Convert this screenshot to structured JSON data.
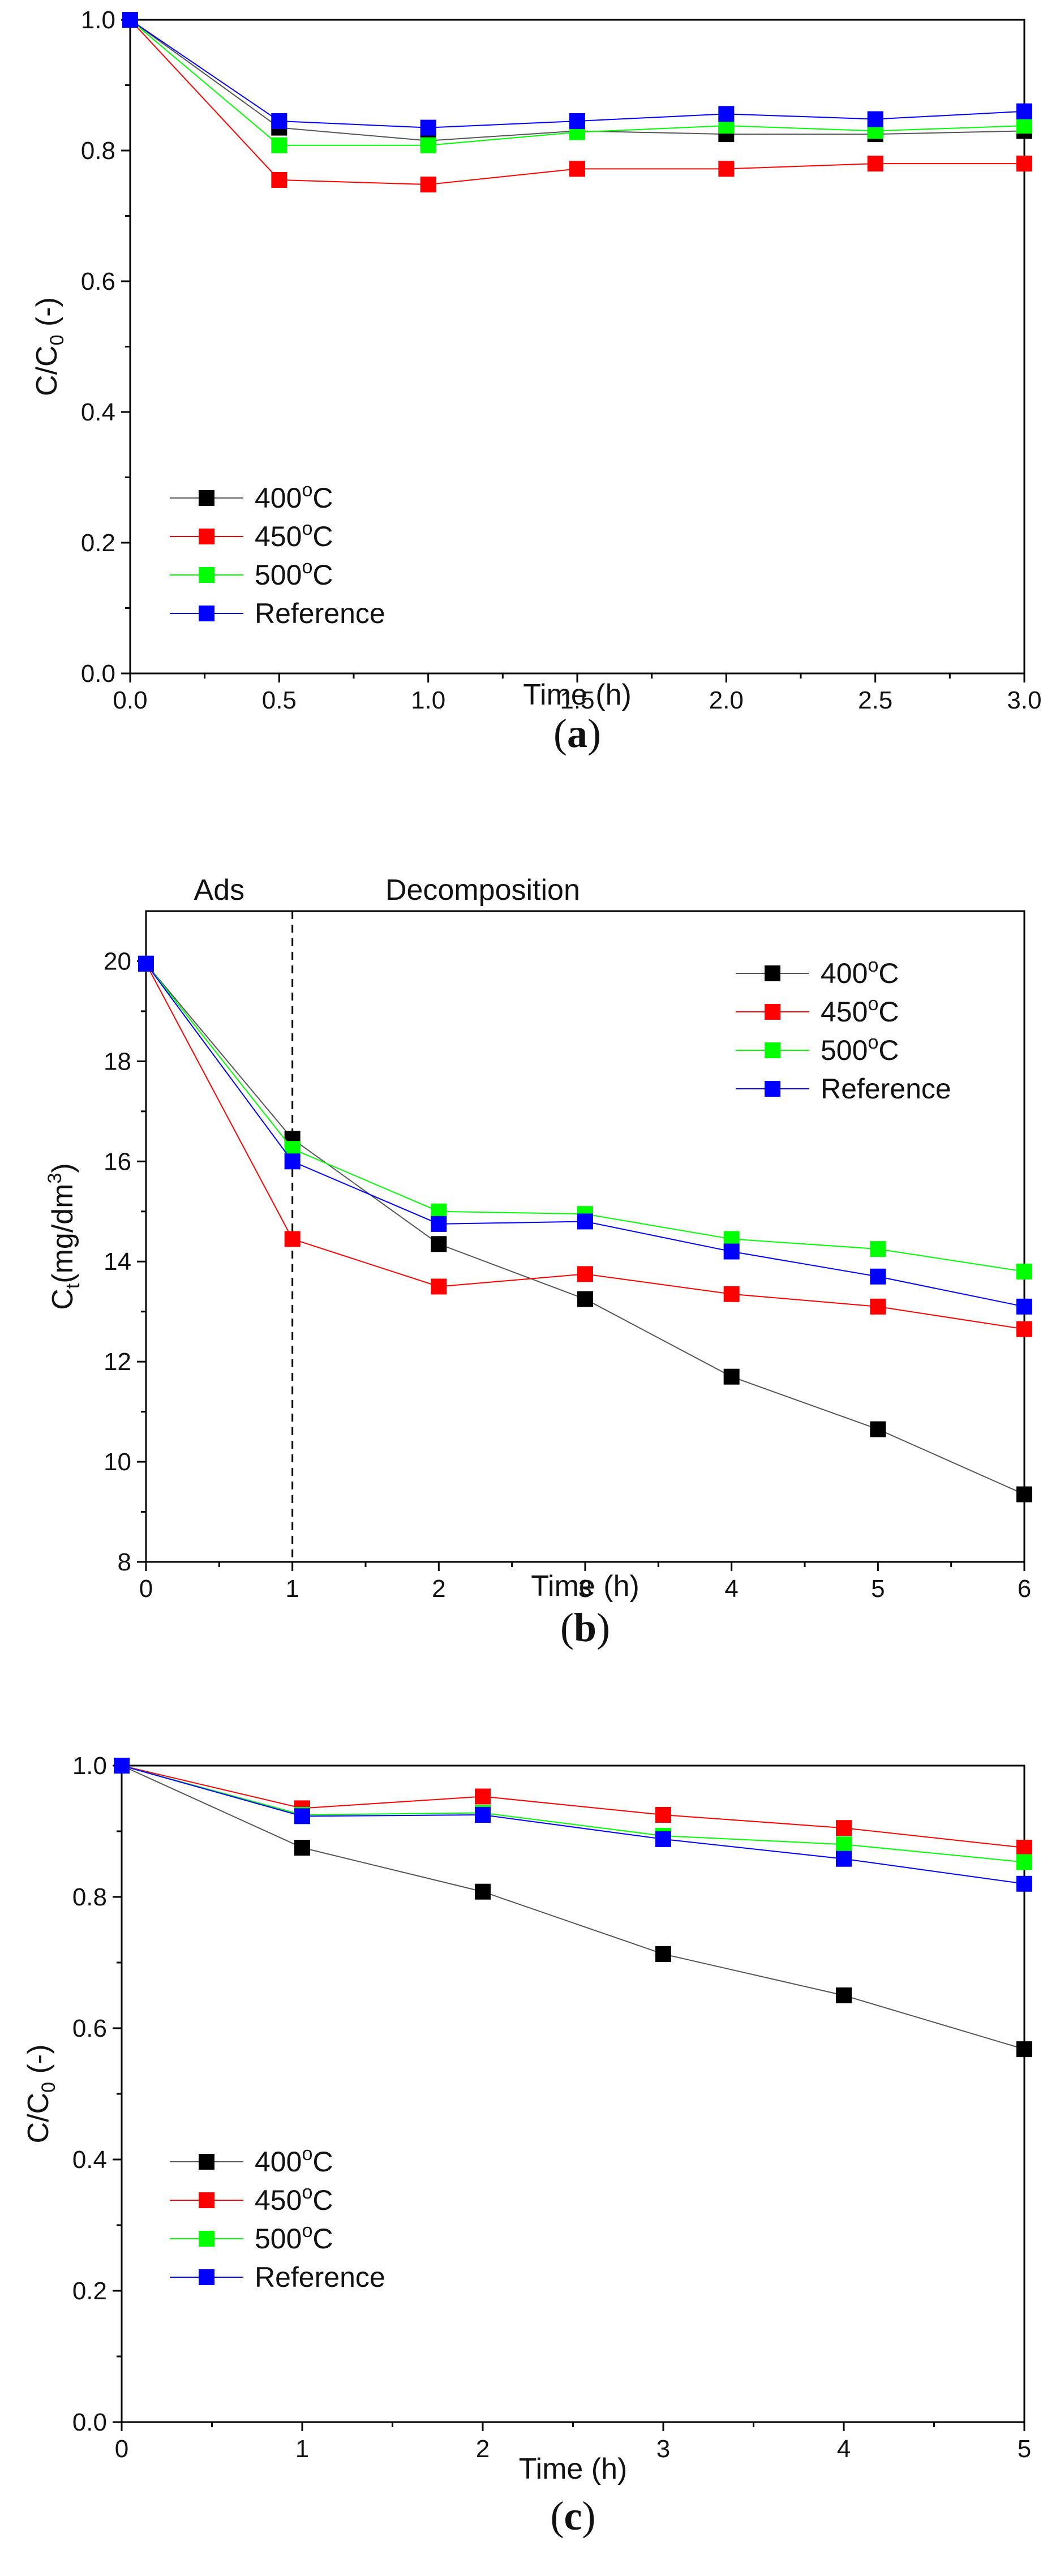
{
  "chart_data": [
    {
      "type": "line",
      "panel_label": "a",
      "xlabel": "Time (h)",
      "ylabel_main": "C/C",
      "ylabel_sub": "0",
      "ylabel_tail": " (-)",
      "xlim": [
        0,
        3
      ],
      "ylim": [
        0,
        1
      ],
      "xticks": [
        0.0,
        0.5,
        1.0,
        1.5,
        2.0,
        2.5,
        3.0
      ],
      "xtick_labels": [
        "0.0",
        "0.5",
        "1.0",
        "1.5",
        "2.0",
        "2.5",
        "3.0"
      ],
      "yticks": [
        0.0,
        0.2,
        0.4,
        0.6,
        0.8,
        1.0
      ],
      "ytick_labels": [
        "0.0",
        "0.2",
        "0.4",
        "0.6",
        "0.8",
        "1.0"
      ],
      "legend_position": "bottom-left",
      "x": [
        0,
        0.5,
        1.0,
        1.5,
        2.0,
        2.5,
        3.0
      ],
      "series": [
        {
          "name": "400",
          "unit": "C",
          "color": "#000000",
          "values": [
            1.0,
            0.835,
            0.815,
            0.83,
            0.825,
            0.825,
            0.83
          ]
        },
        {
          "name": "450",
          "unit": "C",
          "color": "#ff0000",
          "values": [
            1.0,
            0.755,
            0.748,
            0.772,
            0.772,
            0.78,
            0.78
          ]
        },
        {
          "name": "500",
          "unit": "C",
          "color": "#00ff00",
          "values": [
            1.0,
            0.808,
            0.808,
            0.828,
            0.838,
            0.83,
            0.838
          ]
        },
        {
          "name": "Reference",
          "unit": "",
          "color": "#0000ff",
          "values": [
            1.0,
            0.845,
            0.835,
            0.845,
            0.856,
            0.848,
            0.86
          ]
        }
      ]
    },
    {
      "type": "line",
      "panel_label": "b",
      "xlabel": "Time (h)",
      "ylabel_main": "C",
      "ylabel_sub": "t",
      "ylabel_tail": "(mg/dm",
      "ylabel_sup": "3",
      "ylabel_close": ")",
      "xlim": [
        0,
        6
      ],
      "ylim": [
        8,
        21
      ],
      "xticks": [
        0,
        1,
        2,
        3,
        4,
        5,
        6
      ],
      "xtick_labels": [
        "0",
        "1",
        "2",
        "3",
        "4",
        "5",
        "6"
      ],
      "yticks": [
        8,
        10,
        12,
        14,
        16,
        18,
        20
      ],
      "ytick_labels": [
        "8",
        "10",
        "12",
        "14",
        "16",
        "18",
        "20"
      ],
      "legend_position": "top-right",
      "annotations": [
        {
          "text": "Ads",
          "x": 0.5
        },
        {
          "text": "Decomposition",
          "x": 2.3
        }
      ],
      "divider_x": 1,
      "x": [
        0,
        1,
        2,
        3,
        4,
        5,
        6
      ],
      "series": [
        {
          "name": "400",
          "unit": "C",
          "color": "#000000",
          "values": [
            19.95,
            16.45,
            14.35,
            13.25,
            11.7,
            10.65,
            9.35
          ]
        },
        {
          "name": "450",
          "unit": "C",
          "color": "#ff0000",
          "values": [
            19.95,
            14.45,
            13.5,
            13.75,
            13.35,
            13.1,
            12.65
          ]
        },
        {
          "name": "500",
          "unit": "C",
          "color": "#00ff00",
          "values": [
            19.95,
            16.25,
            15.0,
            14.95,
            14.45,
            14.25,
            13.8
          ]
        },
        {
          "name": "Reference",
          "unit": "",
          "color": "#0000ff",
          "values": [
            19.95,
            16.0,
            14.75,
            14.8,
            14.2,
            13.7,
            13.1
          ]
        }
      ]
    },
    {
      "type": "line",
      "panel_label": "c",
      "xlabel": "Time (h)",
      "ylabel_main": "C/C",
      "ylabel_sub": "0",
      "ylabel_tail": " (-)",
      "xlim": [
        0,
        5
      ],
      "ylim": [
        0,
        1
      ],
      "xticks": [
        0,
        1,
        2,
        3,
        4,
        5
      ],
      "xtick_labels": [
        "0",
        "1",
        "2",
        "3",
        "4",
        "5"
      ],
      "yticks": [
        0.0,
        0.2,
        0.4,
        0.6,
        0.8,
        1.0
      ],
      "ytick_labels": [
        "0.0",
        "0.2",
        "0.4",
        "0.6",
        "0.8",
        "1.0"
      ],
      "legend_position": "bottom-left",
      "x": [
        0,
        1,
        2,
        3,
        4,
        5
      ],
      "series": [
        {
          "name": "400",
          "unit": "C",
          "color": "#000000",
          "values": [
            1.0,
            0.875,
            0.808,
            0.713,
            0.65,
            0.568
          ]
        },
        {
          "name": "450",
          "unit": "C",
          "color": "#ff0000",
          "values": [
            1.0,
            0.935,
            0.953,
            0.925,
            0.905,
            0.875
          ]
        },
        {
          "name": "500",
          "unit": "C",
          "color": "#00ff00",
          "values": [
            1.0,
            0.925,
            0.928,
            0.893,
            0.88,
            0.853
          ]
        },
        {
          "name": "Reference",
          "unit": "",
          "color": "#0000ff",
          "values": [
            1.0,
            0.923,
            0.925,
            0.888,
            0.858,
            0.82
          ]
        }
      ]
    }
  ]
}
